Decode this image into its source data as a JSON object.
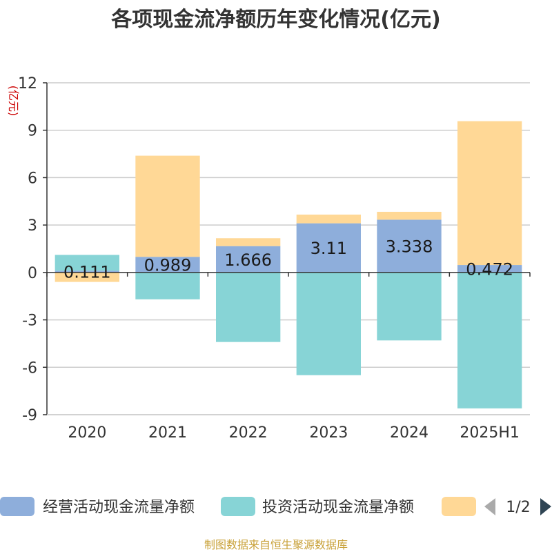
{
  "chart_data": {
    "type": "bar",
    "stacked": true,
    "title": "各项现金流净额历年变化情况(亿元)",
    "ylabel": "(亿元)",
    "xlabel": "",
    "categories": [
      "2020",
      "2021",
      "2022",
      "2023",
      "2024",
      "2025H1"
    ],
    "ylim": [
      -9,
      12
    ],
    "yticks": [
      -9,
      -6,
      -3,
      0,
      3,
      6,
      9,
      12
    ],
    "ytick_labels": [
      "-9",
      "-6",
      "-3",
      "0",
      "3",
      "6",
      "9",
      "12"
    ],
    "grid": true,
    "legend_position": "bottom",
    "series": [
      {
        "name": "经营活动现金流量净额",
        "color": "#8eaedb",
        "values": [
          0.111,
          0.989,
          1.666,
          3.11,
          3.338,
          0.472
        ],
        "labels": [
          "0.111",
          "0.989",
          "1.666",
          "3.11",
          "3.338",
          "0.472"
        ]
      },
      {
        "name": "投资活动现金流量净额",
        "color": "#87d4d6",
        "values": [
          1.0,
          -1.7,
          -4.4,
          -6.5,
          -4.3,
          -8.6
        ]
      },
      {
        "name": "",
        "color": "#ffd896",
        "values": [
          -0.6,
          6.4,
          0.5,
          0.55,
          0.5,
          9.1
        ]
      }
    ]
  },
  "legend": {
    "page_indicator": "1/2"
  },
  "source": "制图数据来自恒生聚源数据库"
}
